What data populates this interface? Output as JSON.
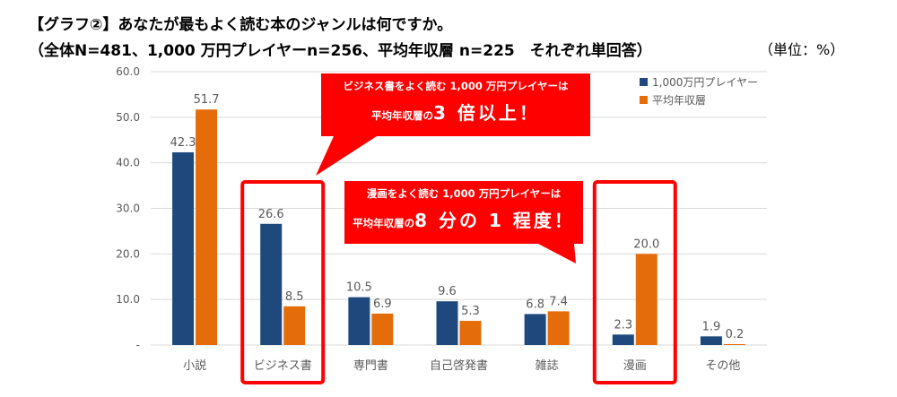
{
  "header": {
    "title_line1": "【グラフ②】あなたが最もよく読む本のジャンルは何ですか。",
    "title_line2": "（全体N=481、1,000 万円プレイヤーn=256、平均年収層 n=225　それぞれ単回答）",
    "unit": "（単位：%）"
  },
  "callouts": [
    {
      "line1": "ビジネス書をよく読む 1,000 万円プレイヤーは",
      "line2_prefix": "平均年収層の",
      "line2_big": "3 倍以上！"
    },
    {
      "line1": "漫画をよく読む 1,000 万円プレイヤーは",
      "line2_prefix": "平均年収層の",
      "line2_big": "8 分の 1 程度！"
    }
  ],
  "colors": {
    "series1": "#1F497D",
    "series2": "#E46C0A",
    "highlight": "#FF0000",
    "grid": "#D9D9D9",
    "axis_text": "#595959"
  },
  "chart_data": {
    "type": "bar",
    "categories": [
      "小説",
      "ビジネス書",
      "専門書",
      "自己啓発書",
      "雑誌",
      "漫画",
      "その他"
    ],
    "series": [
      {
        "name": "1,000万円プレイヤー",
        "values": [
          42.3,
          26.6,
          10.5,
          9.6,
          6.8,
          2.3,
          1.9
        ],
        "labels": [
          "42.3",
          "26.6",
          "10.5",
          "9.6",
          "6.8",
          "2.3",
          "1.9"
        ]
      },
      {
        "name": "平均年収層",
        "values": [
          51.7,
          8.5,
          6.9,
          5.3,
          7.4,
          20.0,
          0.2
        ],
        "labels": [
          "51.7",
          "8.5",
          "6.9",
          "5.3",
          "7.4",
          "20.0",
          "0.2"
        ]
      }
    ],
    "yticks": [
      "-",
      "10.0",
      "20.0",
      "30.0",
      "40.0",
      "50.0",
      "60.0"
    ],
    "ylim": [
      0,
      60
    ],
    "grid": true,
    "legend": "top-right",
    "highlighted_categories": [
      "ビジネス書",
      "漫画"
    ]
  }
}
